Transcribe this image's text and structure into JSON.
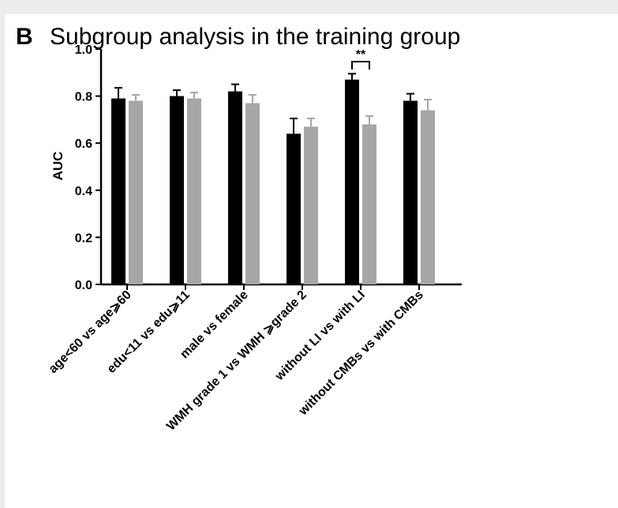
{
  "panel_letter": "B",
  "chart_data": {
    "type": "bar",
    "title": "Subgroup analysis in the training group",
    "xlabel": "",
    "ylabel": "AUC",
    "ylim": [
      0,
      1.0
    ],
    "yticks": [
      "0.0",
      "0.2",
      "0.4",
      "0.6",
      "0.8",
      "1.0"
    ],
    "grid": false,
    "legend": "none",
    "categories": [
      "age<60 vs age⩾60",
      "edu<11 vs edu⩾11",
      "male vs female",
      "WMH grade 1 vs WMH ⩾grade 2",
      "without LI vs with LI",
      "without CMBs vs with CMBs"
    ],
    "series": [
      {
        "color": "#000000",
        "values": [
          0.79,
          0.8,
          0.82,
          0.64,
          0.87,
          0.78
        ],
        "error": [
          0.045,
          0.025,
          0.03,
          0.065,
          0.025,
          0.03
        ]
      },
      {
        "color": "#a6a6a8",
        "values": [
          0.78,
          0.79,
          0.77,
          0.67,
          0.68,
          0.74
        ],
        "error": [
          0.025,
          0.025,
          0.035,
          0.035,
          0.035,
          0.045
        ]
      }
    ],
    "annotations": [
      {
        "category_index": 4,
        "text": "**"
      }
    ]
  }
}
